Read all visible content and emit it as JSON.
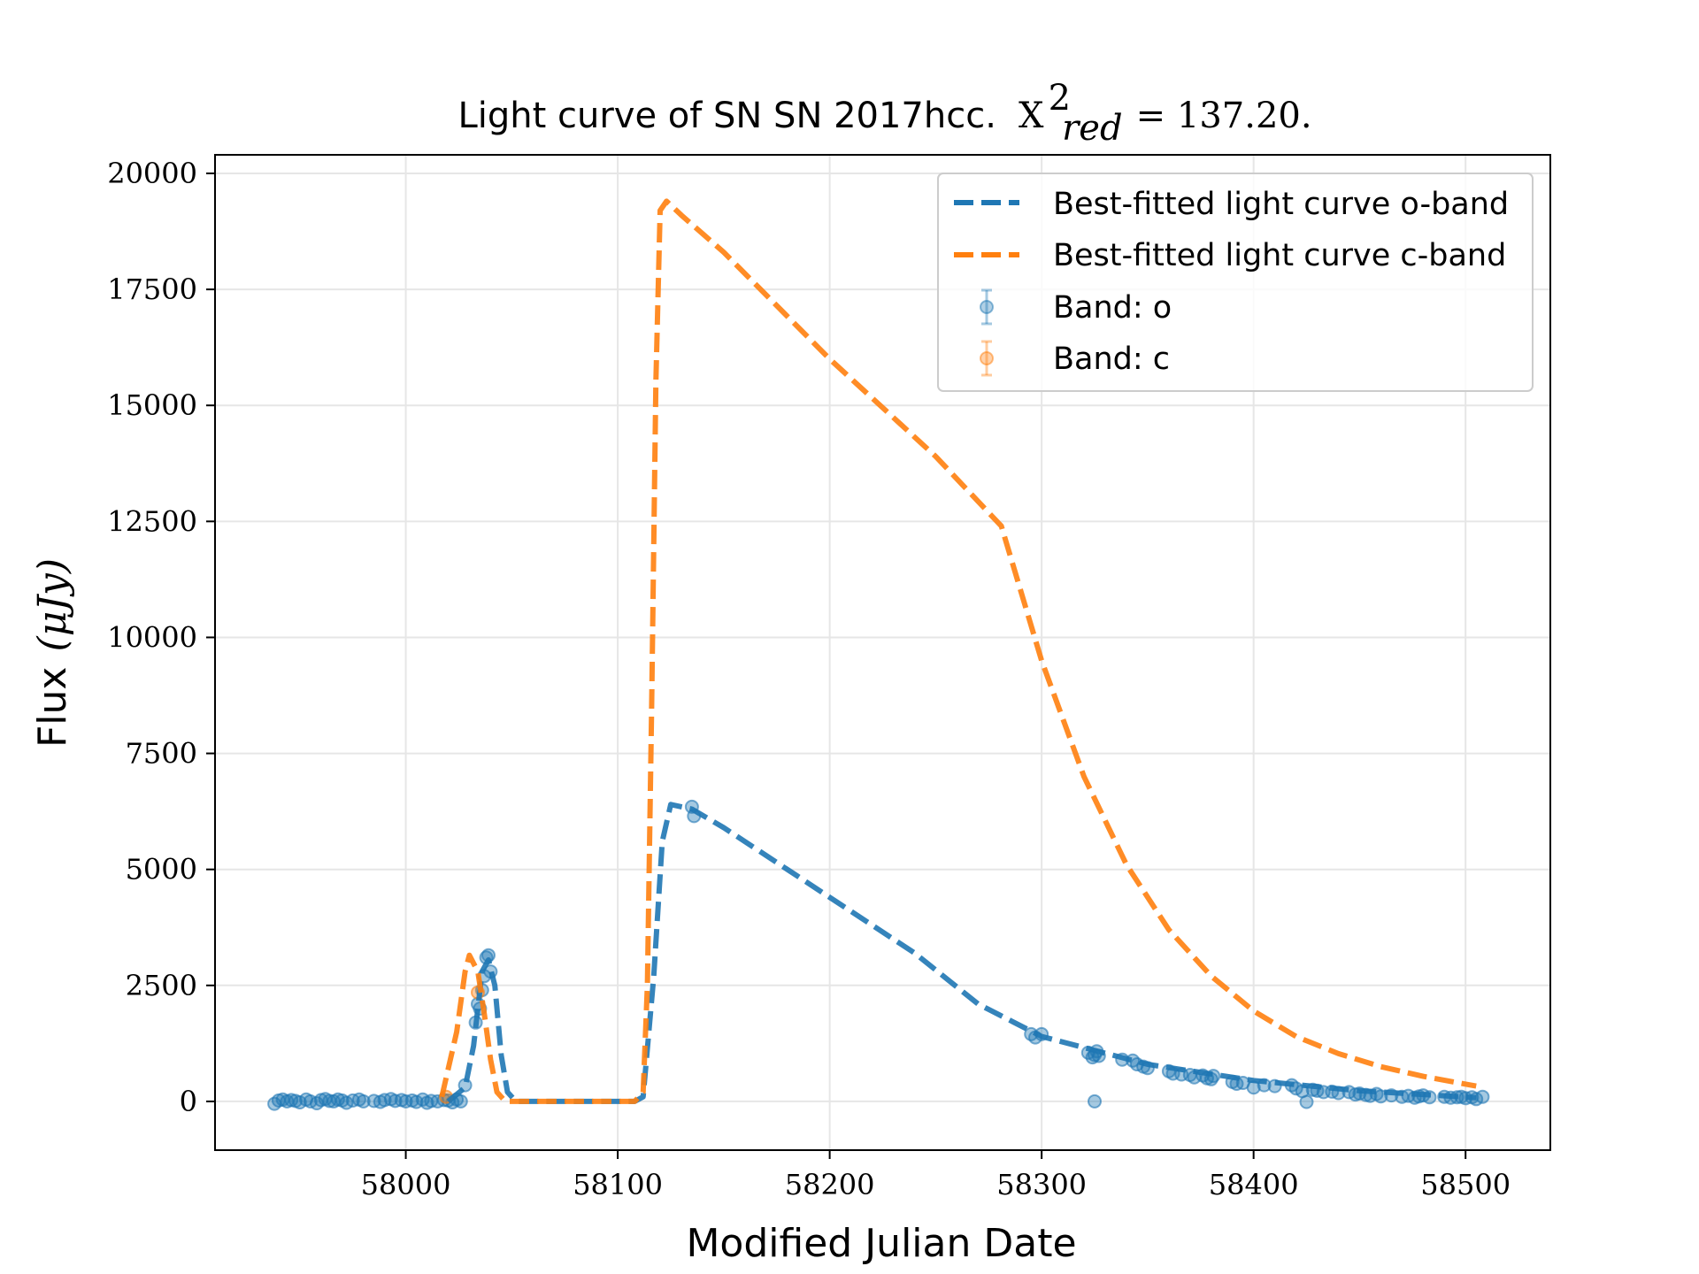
{
  "chart_data": {
    "type": "line",
    "title": {
      "text": "Light curve of SN SN 2017hcc.",
      "chi_symbol": "X",
      "chi_sup": "2",
      "chi_sub": "red",
      "chi_value": "= 137.20."
    },
    "xlabel": "Modified Julian Date",
    "ylabel": {
      "text": "Flux",
      "unit": "(μJy)"
    },
    "xlim": [
      57910,
      58540
    ],
    "ylim": [
      -1050,
      20400
    ],
    "xticks": [
      58000,
      58100,
      58200,
      58300,
      58400,
      58500
    ],
    "yticks": [
      0,
      2500,
      5000,
      7500,
      10000,
      12500,
      15000,
      17500,
      20000
    ],
    "grid": true,
    "legend_position": "top-right",
    "colors": {
      "o": "#1f77b4",
      "c": "#ff7f0e"
    },
    "legend": [
      {
        "label": "Best-fitted light curve o-band",
        "kind": "line",
        "band": "o"
      },
      {
        "label": "Best-fitted light curve c-band",
        "kind": "line",
        "band": "c"
      },
      {
        "label": "Band: o",
        "kind": "marker",
        "band": "o"
      },
      {
        "label": "Band: c",
        "kind": "marker",
        "band": "c"
      }
    ],
    "series": [
      {
        "name": "Best-fitted light curve o-band",
        "band": "o",
        "style": "dashed",
        "points": [
          [
            58020,
            0
          ],
          [
            58028,
            300
          ],
          [
            58032,
            1200
          ],
          [
            58036,
            2800
          ],
          [
            58039,
            3050
          ],
          [
            58042,
            2500
          ],
          [
            58045,
            1000
          ],
          [
            58048,
            200
          ],
          [
            58052,
            0
          ],
          [
            58108,
            0
          ],
          [
            58112,
            100
          ],
          [
            58117,
            2700
          ],
          [
            58121,
            5600
          ],
          [
            58125,
            6400
          ],
          [
            58135,
            6300
          ],
          [
            58150,
            5900
          ],
          [
            58200,
            4400
          ],
          [
            58240,
            3200
          ],
          [
            58270,
            2100
          ],
          [
            58300,
            1400
          ],
          [
            58350,
            800
          ],
          [
            58400,
            450
          ],
          [
            58450,
            230
          ],
          [
            58505,
            80
          ]
        ]
      },
      {
        "name": "Best-fitted light curve c-band",
        "band": "c",
        "style": "dashed",
        "points": [
          [
            58017,
            100
          ],
          [
            58024,
            1500
          ],
          [
            58028,
            2800
          ],
          [
            58030,
            3150
          ],
          [
            58034,
            2800
          ],
          [
            58037,
            1900
          ],
          [
            58040,
            900
          ],
          [
            58043,
            200
          ],
          [
            58047,
            0
          ],
          [
            58108,
            0
          ],
          [
            58112,
            200
          ],
          [
            58114,
            2500
          ],
          [
            58116,
            8500
          ],
          [
            58118,
            15500
          ],
          [
            58120,
            19200
          ],
          [
            58123,
            19400
          ],
          [
            58130,
            19100
          ],
          [
            58150,
            18300
          ],
          [
            58200,
            16000
          ],
          [
            58250,
            13900
          ],
          [
            58281,
            12400
          ],
          [
            58300,
            9500
          ],
          [
            58320,
            7000
          ],
          [
            58340,
            5100
          ],
          [
            58360,
            3700
          ],
          [
            58380,
            2700
          ],
          [
            58400,
            1950
          ],
          [
            58420,
            1400
          ],
          [
            58440,
            1030
          ],
          [
            58460,
            750
          ],
          [
            58480,
            540
          ],
          [
            58505,
            330
          ]
        ]
      },
      {
        "name": "Band: o",
        "band": "o",
        "style": "markers",
        "points": [
          [
            57938,
            -50
          ],
          [
            57940,
            20
          ],
          [
            57942,
            40
          ],
          [
            57944,
            0
          ],
          [
            57946,
            30
          ],
          [
            57948,
            10
          ],
          [
            57950,
            -20
          ],
          [
            57953,
            40
          ],
          [
            57955,
            0
          ],
          [
            57958,
            -40
          ],
          [
            57960,
            30
          ],
          [
            57962,
            50
          ],
          [
            57964,
            10
          ],
          [
            57966,
            0
          ],
          [
            57968,
            40
          ],
          [
            57970,
            20
          ],
          [
            57972,
            -30
          ],
          [
            57975,
            20
          ],
          [
            57978,
            40
          ],
          [
            57980,
            0
          ],
          [
            57985,
            10
          ],
          [
            57988,
            -10
          ],
          [
            57990,
            30
          ],
          [
            57993,
            50
          ],
          [
            57995,
            10
          ],
          [
            57998,
            30
          ],
          [
            58000,
            0
          ],
          [
            58003,
            20
          ],
          [
            58005,
            -10
          ],
          [
            58008,
            40
          ],
          [
            58010,
            -30
          ],
          [
            58012,
            10
          ],
          [
            58015,
            0
          ],
          [
            58018,
            30
          ],
          [
            58020,
            20
          ],
          [
            58022,
            -20
          ],
          [
            58024,
            40
          ],
          [
            58026,
            0
          ],
          [
            58028,
            350
          ],
          [
            58033,
            1700
          ],
          [
            58034,
            2100
          ],
          [
            58035,
            2000
          ],
          [
            58036,
            2400
          ],
          [
            58037,
            2700
          ],
          [
            58038,
            3100
          ],
          [
            58039,
            3150
          ],
          [
            58040,
            2800
          ],
          [
            58135,
            6350
          ],
          [
            58136,
            6150
          ],
          [
            58295,
            1450
          ],
          [
            58297,
            1380
          ],
          [
            58300,
            1450
          ],
          [
            58322,
            1050
          ],
          [
            58324,
            950
          ],
          [
            58325,
            1000
          ],
          [
            58326,
            1080
          ],
          [
            58327,
            980
          ],
          [
            58325,
            0
          ],
          [
            58338,
            900
          ],
          [
            58343,
            880
          ],
          [
            58345,
            800
          ],
          [
            58348,
            750
          ],
          [
            58350,
            720
          ],
          [
            58360,
            650
          ],
          [
            58362,
            600
          ],
          [
            58366,
            580
          ],
          [
            58370,
            570
          ],
          [
            58372,
            520
          ],
          [
            58376,
            560
          ],
          [
            58378,
            500
          ],
          [
            58380,
            480
          ],
          [
            58381,
            550
          ],
          [
            58390,
            420
          ],
          [
            58392,
            380
          ],
          [
            58395,
            400
          ],
          [
            58400,
            300
          ],
          [
            58405,
            350
          ],
          [
            58410,
            330
          ],
          [
            58418,
            350
          ],
          [
            58420,
            280
          ],
          [
            58423,
            220
          ],
          [
            58425,
            -10
          ],
          [
            58428,
            250
          ],
          [
            58430,
            230
          ],
          [
            58433,
            200
          ],
          [
            58437,
            210
          ],
          [
            58440,
            180
          ],
          [
            58445,
            200
          ],
          [
            58448,
            150
          ],
          [
            58450,
            170
          ],
          [
            58453,
            140
          ],
          [
            58455,
            120
          ],
          [
            58458,
            160
          ],
          [
            58460,
            110
          ],
          [
            58465,
            130
          ],
          [
            58470,
            100
          ],
          [
            58473,
            120
          ],
          [
            58476,
            80
          ],
          [
            58478,
            110
          ],
          [
            58480,
            130
          ],
          [
            58483,
            90
          ],
          [
            58490,
            100
          ],
          [
            58493,
            80
          ],
          [
            58496,
            90
          ],
          [
            58498,
            100
          ],
          [
            58500,
            70
          ],
          [
            58503,
            90
          ],
          [
            58505,
            50
          ],
          [
            58508,
            100
          ]
        ]
      },
      {
        "name": "Band: c",
        "band": "c",
        "style": "markers",
        "points": [
          [
            58019,
            100
          ],
          [
            58034,
            2350
          ]
        ]
      }
    ]
  }
}
